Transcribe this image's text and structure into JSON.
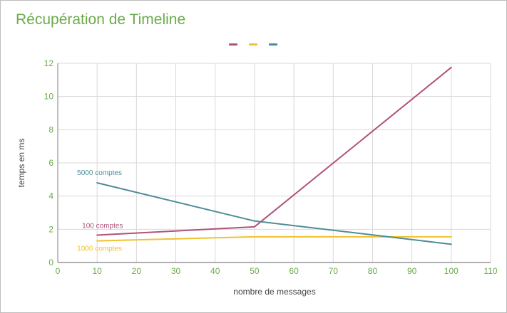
{
  "chart_data": {
    "type": "line",
    "title": "Récupération de Timeline",
    "xlabel": "nombre de messages",
    "ylabel": "temps en ms",
    "xlim": [
      0,
      110
    ],
    "ylim": [
      0,
      12
    ],
    "x_ticks": [
      0,
      10,
      20,
      30,
      40,
      50,
      60,
      70,
      80,
      90,
      100,
      110
    ],
    "y_ticks": [
      0,
      2,
      4,
      6,
      8,
      10,
      12
    ],
    "grid": true,
    "legend": "top-center",
    "x": [
      10,
      50,
      100
    ],
    "series": [
      {
        "name": "100 comptes",
        "color": "#b0527b",
        "values": [
          1.65,
          2.15,
          11.75
        ]
      },
      {
        "name": "1000 comptes",
        "color": "#f2c12e",
        "values": [
          1.3,
          1.55,
          1.55
        ]
      },
      {
        "name": "5000 comptes",
        "color": "#4e8c97",
        "values": [
          4.8,
          2.5,
          1.1
        ]
      }
    ]
  },
  "colors": {
    "title": "#6aab4b",
    "tick_labels": "#6aab4b",
    "axis_titles": "#444444",
    "grid": "#d9d9d9",
    "axis": "#7f7f7f"
  }
}
